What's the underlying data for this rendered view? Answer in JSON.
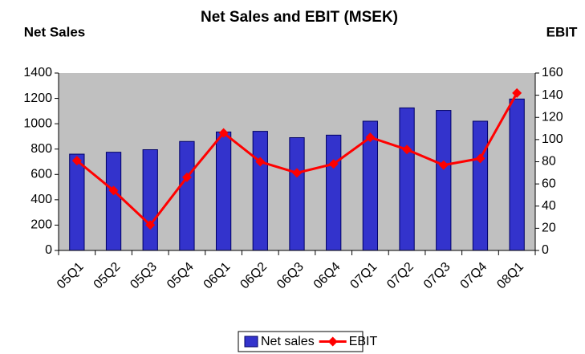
{
  "chart_data": {
    "type": "bar",
    "title": "Net Sales and EBIT (MSEK)",
    "y_label": "Net Sales",
    "y2_label": "EBIT",
    "categories": [
      "05Q1",
      "05Q2",
      "05Q3",
      "05Q4",
      "06Q1",
      "06Q2",
      "06Q3",
      "06Q4",
      "07Q1",
      "07Q2",
      "07Q3",
      "07Q4",
      "08Q1"
    ],
    "series": [
      {
        "name": "Net sales",
        "color": "#3333cc",
        "type": "bar",
        "values": [
          760,
          775,
          795,
          860,
          935,
          940,
          890,
          910,
          1020,
          1125,
          1105,
          1020,
          1195
        ]
      },
      {
        "name": "EBIT",
        "color": "#ff0000",
        "type": "line",
        "axis": "y2",
        "values": [
          81,
          54,
          23,
          66,
          106,
          80,
          70,
          78,
          102,
          91,
          77,
          83,
          142
        ]
      }
    ],
    "ylim": [
      0,
      1400
    ],
    "yticks": [
      0,
      200,
      400,
      600,
      800,
      1000,
      1200,
      1400
    ],
    "y2lim": [
      0,
      160
    ],
    "y2ticks": [
      0,
      20,
      40,
      60,
      80,
      100,
      120,
      140,
      160
    ],
    "grid": false,
    "legend": "bottom",
    "plot_background": "#c0c0c0"
  }
}
